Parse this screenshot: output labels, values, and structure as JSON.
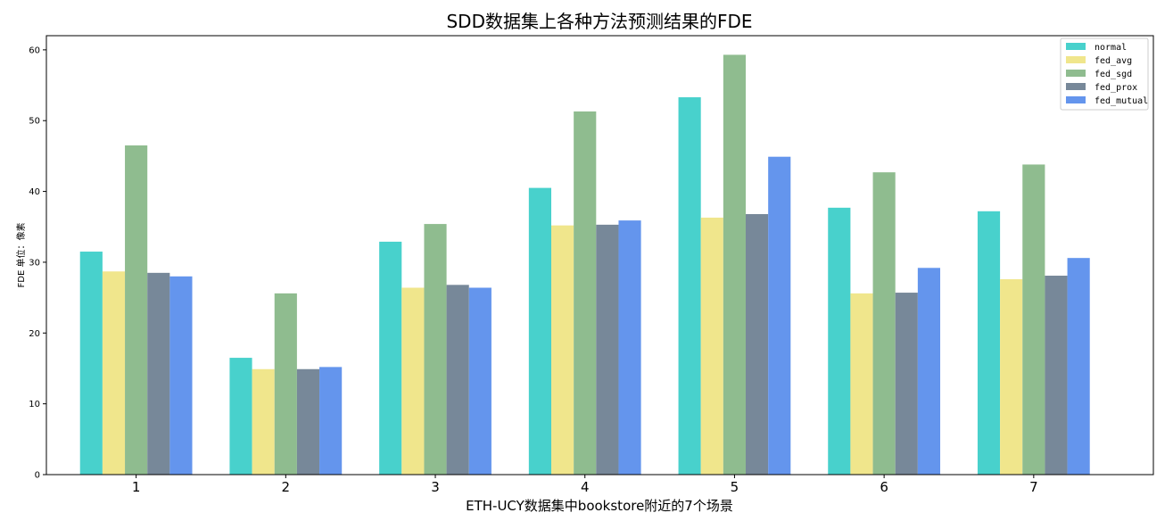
{
  "chart_data": {
    "type": "bar",
    "title": "SDD数据集上各种方法预测结果的FDE",
    "xlabel": "ETH-UCY数据集中bookstore附近的7个场景",
    "ylabel": "FDE 单位：像素",
    "categories": [
      "1",
      "2",
      "3",
      "4",
      "5",
      "6",
      "7"
    ],
    "ylim": [
      0,
      62
    ],
    "yticks": [
      0,
      10,
      20,
      30,
      40,
      50,
      60
    ],
    "grid": false,
    "legend_position": "top-right",
    "series": [
      {
        "name": "normal",
        "color": "#48d1cc",
        "values": [
          31.5,
          16.5,
          32.9,
          40.5,
          53.3,
          37.7,
          37.2
        ]
      },
      {
        "name": "fed_avg",
        "color": "#f0e68c",
        "values": [
          28.7,
          14.9,
          26.4,
          35.2,
          36.3,
          25.6,
          27.6
        ]
      },
      {
        "name": "fed_sgd",
        "color": "#8fbc8f",
        "values": [
          46.5,
          25.6,
          35.4,
          51.3,
          59.3,
          42.7,
          43.8
        ]
      },
      {
        "name": "fed_prox",
        "color": "#778899",
        "values": [
          28.5,
          14.9,
          26.8,
          35.3,
          36.8,
          25.7,
          28.1
        ]
      },
      {
        "name": "fed_mutual",
        "color": "#6495ed",
        "values": [
          28.0,
          15.2,
          26.4,
          35.9,
          44.9,
          29.2,
          30.6
        ]
      }
    ]
  }
}
